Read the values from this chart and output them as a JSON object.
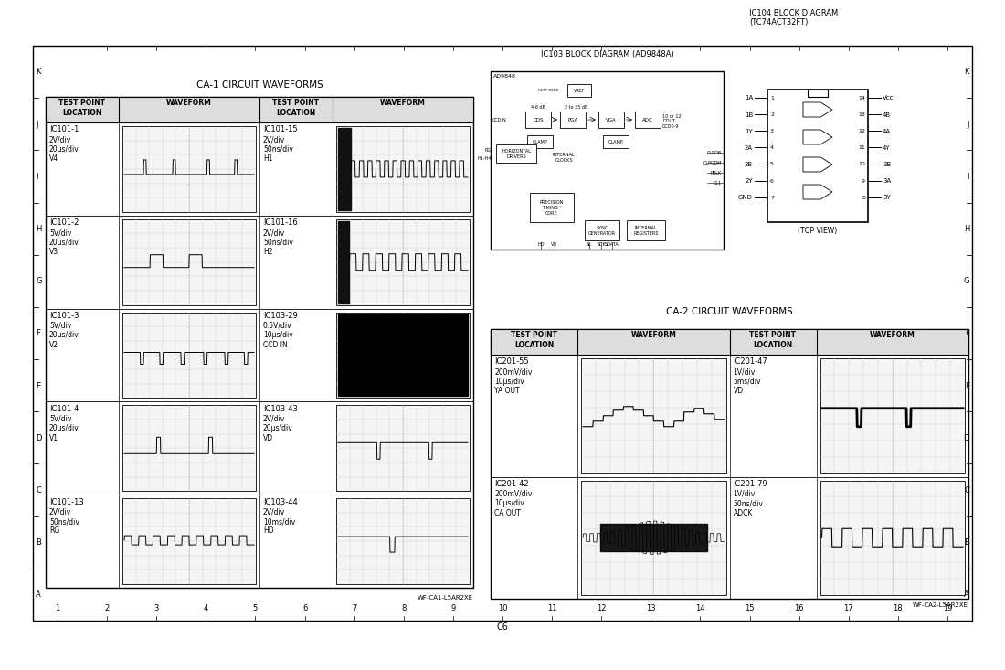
{
  "page_bg": "#ffffff",
  "title_ca1": "CA-1 CIRCUIT WAVEFORMS",
  "title_ca2": "CA-2 CIRCUIT WAVEFORMS",
  "title_ic103": "IC103 BLOCK DIAGRAM (AD9848A)",
  "title_ic104": "IC104 BLOCK DIAGRAM\n(TC74ACT32FT)",
  "row_letters": [
    "K",
    "J",
    "I",
    "H",
    "G",
    "F",
    "E",
    "D",
    "C",
    "B",
    "A"
  ],
  "col_numbers": [
    "1",
    "2",
    "3",
    "4",
    "5",
    "6",
    "7",
    "8",
    "9",
    "10",
    "11",
    "12",
    "13",
    "14",
    "15",
    "16",
    "17",
    "18",
    "19"
  ],
  "footer_text": "C6",
  "wf_ca1_label": "WF-CA1-L5AR2XE",
  "wf_ca2_label": "WF-CA2-L5AR2XE",
  "ca1_rows": [
    {
      "loc": "IC101-1",
      "sub": "2V/div\n20μs/div\nV4",
      "col2_loc": "IC101-15",
      "col2_sub": "2V/div\n50ns/div\nH1"
    },
    {
      "loc": "IC101-2",
      "sub": "5V/div\n20μs/div\nV3",
      "col2_loc": "IC101-16",
      "col2_sub": "2V/div\n50ns/div\nH2"
    },
    {
      "loc": "IC101-3",
      "sub": "5V/div\n20μs/div\nV2",
      "col2_loc": "IC103-29",
      "col2_sub": "0.5V/div\n10μs/div\nCCD IN"
    },
    {
      "loc": "IC101-4",
      "sub": "5V/div\n20μs/div\nV1",
      "col2_loc": "IC103-43",
      "col2_sub": "2V/div\n20μs/div\nVD"
    },
    {
      "loc": "IC101-13",
      "sub": "2V/div\n50ns/div\nRG",
      "col2_loc": "IC103-44",
      "col2_sub": "2V/div\n10ms/div\nHD"
    }
  ],
  "ca2_rows": [
    {
      "loc": "IC201-55",
      "sub": "200mV/div\n10μs/div\nYA OUT",
      "col2_loc": "IC201-47",
      "col2_sub": "1V/div\n5ms/div\nVD"
    },
    {
      "loc": "IC201-42",
      "sub": "200mV/div\n10μs/div\nCA OUT",
      "col2_loc": "IC201-79",
      "col2_sub": "1V/div\n50ns/div\nADCK"
    }
  ],
  "top_view_text": "(TOP VIEW)",
  "ic104_left_pins": [
    [
      "1A",
      1
    ],
    [
      "1B",
      2
    ],
    [
      "1Y",
      3
    ],
    [
      "2A",
      4
    ],
    [
      "2B",
      5
    ],
    [
      "2Y",
      6
    ],
    [
      "GND",
      7
    ]
  ],
  "ic104_right_pins": [
    [
      "Vcc",
      14
    ],
    [
      "4B",
      13
    ],
    [
      "4A",
      12
    ],
    [
      "4Y",
      11
    ],
    [
      "3B",
      10
    ],
    [
      "3A",
      9
    ],
    [
      "3Y",
      8
    ]
  ]
}
